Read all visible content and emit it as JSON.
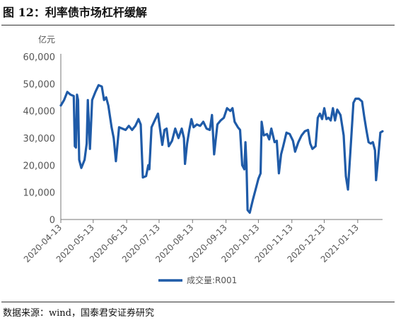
{
  "figure": {
    "title": "图 12：利率债市场杠杆缓解",
    "source": "数据来源：wind，国泰君安证券研究"
  },
  "chart_data": {
    "type": "line",
    "unit_label": "亿元",
    "ylim": [
      0,
      60000
    ],
    "y_ticks": [
      0,
      10000,
      20000,
      30000,
      40000,
      50000,
      60000
    ],
    "y_tick_labels": [
      "0",
      "10,000",
      "20,000",
      "30,000",
      "40,000",
      "50,000",
      "60,000"
    ],
    "x_ticks": [
      "2020-04-13",
      "2020-05-13",
      "2020-06-13",
      "2020-07-13",
      "2020-08-13",
      "2020-09-13",
      "2020-10-13",
      "2020-11-13",
      "2020-12-13",
      "2021-01-13"
    ],
    "xlim": [
      "2020-04-13",
      "2021-02-05"
    ],
    "grid": false,
    "legend_position": "bottom-center",
    "line_color": "#1f5ba8",
    "series": [
      {
        "name": "成交量:R001",
        "points": [
          [
            "2020-04-13",
            42000
          ],
          [
            "2020-04-16",
            44000
          ],
          [
            "2020-04-19",
            47000
          ],
          [
            "2020-04-22",
            46000
          ],
          [
            "2020-04-25",
            45500
          ],
          [
            "2020-04-26",
            27000
          ],
          [
            "2020-04-27",
            26500
          ],
          [
            "2020-04-28",
            46000
          ],
          [
            "2020-04-29",
            44000
          ],
          [
            "2020-04-30",
            22000
          ],
          [
            "2020-05-02",
            19000
          ],
          [
            "2020-05-05",
            22000
          ],
          [
            "2020-05-07",
            28000
          ],
          [
            "2020-05-08",
            44000
          ],
          [
            "2020-05-10",
            26000
          ],
          [
            "2020-05-12",
            44000
          ],
          [
            "2020-05-15",
            47000
          ],
          [
            "2020-05-18",
            49500
          ],
          [
            "2020-05-21",
            49000
          ],
          [
            "2020-05-23",
            44000
          ],
          [
            "2020-05-25",
            45000
          ],
          [
            "2020-05-27",
            42000
          ],
          [
            "2020-05-30",
            34000
          ],
          [
            "2020-06-01",
            30000
          ],
          [
            "2020-06-03",
            21500
          ],
          [
            "2020-06-06",
            34000
          ],
          [
            "2020-06-09",
            33500
          ],
          [
            "2020-06-12",
            33000
          ],
          [
            "2020-06-15",
            34500
          ],
          [
            "2020-06-18",
            33000
          ],
          [
            "2020-06-21",
            34500
          ],
          [
            "2020-06-24",
            37000
          ],
          [
            "2020-06-26",
            35000
          ],
          [
            "2020-06-28",
            15500
          ],
          [
            "2020-07-01",
            16000
          ],
          [
            "2020-07-03",
            20000
          ],
          [
            "2020-07-04",
            18500
          ],
          [
            "2020-07-06",
            34000
          ],
          [
            "2020-07-09",
            36500
          ],
          [
            "2020-07-12",
            39000
          ],
          [
            "2020-07-14",
            33000
          ],
          [
            "2020-07-16",
            27500
          ],
          [
            "2020-07-18",
            33000
          ],
          [
            "2020-07-20",
            33500
          ],
          [
            "2020-07-22",
            27000
          ],
          [
            "2020-07-25",
            29000
          ],
          [
            "2020-07-28",
            33500
          ],
          [
            "2020-07-31",
            30000
          ],
          [
            "2020-08-03",
            33500
          ],
          [
            "2020-08-05",
            30000
          ],
          [
            "2020-08-06",
            20500
          ],
          [
            "2020-08-08",
            28000
          ],
          [
            "2020-08-10",
            33000
          ],
          [
            "2020-08-12",
            37000
          ],
          [
            "2020-08-14",
            34000
          ],
          [
            "2020-08-17",
            35000
          ],
          [
            "2020-08-20",
            34500
          ],
          [
            "2020-08-23",
            36000
          ],
          [
            "2020-08-26",
            33500
          ],
          [
            "2020-08-29",
            33000
          ],
          [
            "2020-08-31",
            38500
          ],
          [
            "2020-09-02",
            24000
          ],
          [
            "2020-09-05",
            35000
          ],
          [
            "2020-09-08",
            36500
          ],
          [
            "2020-09-11",
            37500
          ],
          [
            "2020-09-14",
            41000
          ],
          [
            "2020-09-17",
            40000
          ],
          [
            "2020-09-19",
            41000
          ],
          [
            "2020-09-21",
            36000
          ],
          [
            "2020-09-24",
            34000
          ],
          [
            "2020-09-26",
            33000
          ],
          [
            "2020-09-28",
            20000
          ],
          [
            "2020-09-30",
            18500
          ],
          [
            "2020-10-01",
            28500
          ],
          [
            "2020-10-02",
            20000
          ],
          [
            "2020-10-03",
            3500
          ],
          [
            "2020-10-05",
            2500
          ],
          [
            "2020-10-08",
            7500
          ],
          [
            "2020-10-11",
            12000
          ],
          [
            "2020-10-13",
            15000
          ],
          [
            "2020-10-15",
            17000
          ],
          [
            "2020-10-16",
            36000
          ],
          [
            "2020-10-18",
            31000
          ],
          [
            "2020-10-21",
            31500
          ],
          [
            "2020-10-23",
            29500
          ],
          [
            "2020-10-25",
            33500
          ],
          [
            "2020-10-28",
            28500
          ],
          [
            "2020-10-30",
            29000
          ],
          [
            "2020-11-01",
            17000
          ],
          [
            "2020-11-03",
            24000
          ],
          [
            "2020-11-05",
            27000
          ],
          [
            "2020-11-08",
            32000
          ],
          [
            "2020-11-11",
            31500
          ],
          [
            "2020-11-14",
            29000
          ],
          [
            "2020-11-16",
            25000
          ],
          [
            "2020-11-19",
            28500
          ],
          [
            "2020-11-22",
            31000
          ],
          [
            "2020-11-25",
            32500
          ],
          [
            "2020-11-28",
            33000
          ],
          [
            "2020-11-30",
            28000
          ],
          [
            "2020-12-02",
            26000
          ],
          [
            "2020-12-05",
            27000
          ],
          [
            "2020-12-07",
            37500
          ],
          [
            "2020-12-09",
            39000
          ],
          [
            "2020-12-11",
            37000
          ],
          [
            "2020-12-13",
            41000
          ],
          [
            "2020-12-15",
            37000
          ],
          [
            "2020-12-17",
            37500
          ],
          [
            "2020-12-19",
            36500
          ],
          [
            "2020-12-21",
            41000
          ],
          [
            "2020-12-23",
            36500
          ],
          [
            "2020-12-25",
            40500
          ],
          [
            "2020-12-28",
            38500
          ],
          [
            "2020-12-31",
            31000
          ],
          [
            "2021-01-02",
            16000
          ],
          [
            "2021-01-04",
            11000
          ],
          [
            "2021-01-07",
            30000
          ],
          [
            "2021-01-09",
            43000
          ],
          [
            "2021-01-11",
            44500
          ],
          [
            "2021-01-14",
            44500
          ],
          [
            "2021-01-17",
            43500
          ],
          [
            "2021-01-19",
            38000
          ],
          [
            "2021-01-21",
            33000
          ],
          [
            "2021-01-23",
            28500
          ],
          [
            "2021-01-25",
            28000
          ],
          [
            "2021-01-27",
            28500
          ],
          [
            "2021-01-29",
            25500
          ],
          [
            "2021-01-30",
            14500
          ],
          [
            "2021-02-01",
            23000
          ],
          [
            "2021-02-03",
            32000
          ],
          [
            "2021-02-05",
            32500
          ]
        ]
      }
    ]
  }
}
